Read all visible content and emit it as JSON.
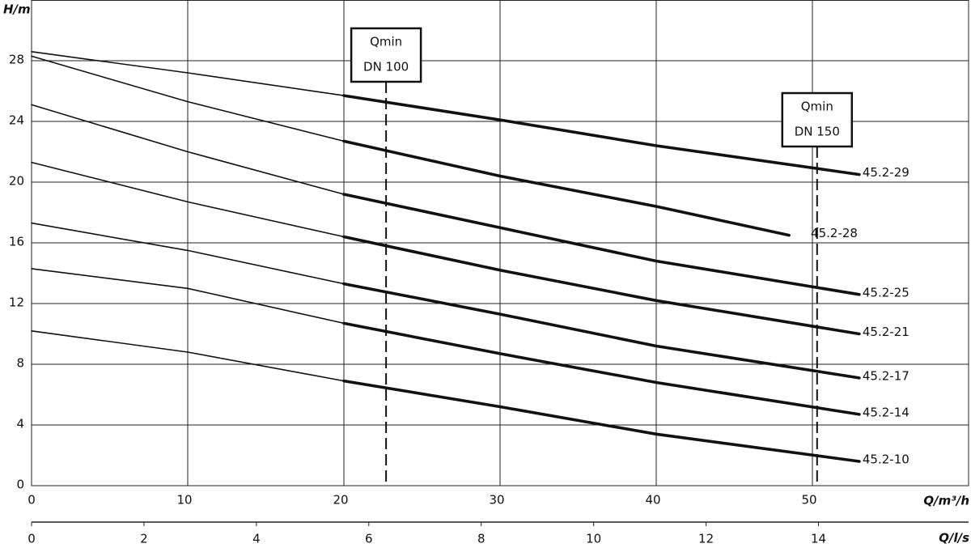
{
  "chart_data": {
    "type": "line",
    "x_label": "Q/m³/h",
    "y_label": "H/m",
    "x2_label": "Q/l/s",
    "xlim": [
      0,
      60
    ],
    "xticks": [
      0,
      10,
      20,
      30,
      40,
      50
    ],
    "ylim": [
      0,
      32
    ],
    "yticks": [
      0,
      4,
      8,
      12,
      16,
      20,
      24,
      28
    ],
    "x2lim": [
      0,
      16.67
    ],
    "x2ticks": [
      0,
      2,
      4,
      6,
      8,
      10,
      12,
      14
    ],
    "grid": true,
    "color": "#111111",
    "series": [
      {
        "name": "45.2-29",
        "x": [
          0,
          10,
          20,
          30,
          40,
          53
        ],
        "values": [
          28.6,
          27.2,
          25.7,
          24.1,
          22.4,
          20.5
        ]
      },
      {
        "name": "45.2-28",
        "x": [
          0,
          10,
          20,
          30,
          40,
          48.5
        ],
        "values": [
          28.3,
          25.3,
          22.7,
          20.4,
          18.4,
          16.5
        ]
      },
      {
        "name": "45.2-25",
        "x": [
          0,
          10,
          20,
          30,
          40,
          53
        ],
        "values": [
          25.1,
          22.0,
          19.2,
          17.0,
          14.8,
          12.6
        ]
      },
      {
        "name": "45.2-21",
        "x": [
          0,
          10,
          20,
          30,
          40,
          53
        ],
        "values": [
          21.3,
          18.7,
          16.4,
          14.2,
          12.2,
          10.0
        ]
      },
      {
        "name": "45.2-17",
        "x": [
          0,
          10,
          20,
          30,
          40,
          53
        ],
        "values": [
          17.3,
          15.5,
          13.3,
          11.3,
          9.2,
          7.1
        ]
      },
      {
        "name": "45.2-14",
        "x": [
          0,
          10,
          20,
          30,
          40,
          53
        ],
        "values": [
          14.3,
          13.0,
          10.7,
          8.7,
          6.8,
          4.7
        ]
      },
      {
        "name": "45.2-10",
        "x": [
          0,
          10,
          20,
          30,
          40,
          53
        ],
        "values": [
          10.2,
          8.8,
          6.9,
          5.2,
          3.4,
          1.6
        ]
      }
    ],
    "annotations": [
      {
        "x": 22.7,
        "lines": [
          "Qmin",
          "DN 100"
        ]
      },
      {
        "x": 50.3,
        "lines": [
          "Qmin",
          "DN 150"
        ]
      }
    ]
  }
}
